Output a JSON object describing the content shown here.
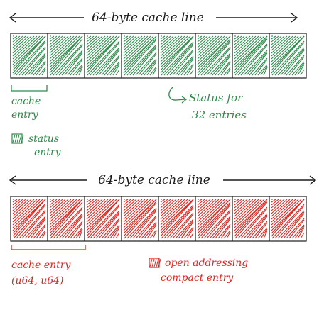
{
  "top_diagram": {
    "title": "64-byte cache line",
    "cell_count": 8,
    "fill_color": "#2e8b4a",
    "ink_color": "#1a1a1a",
    "bracket_label_line1": "cache",
    "bracket_label_line2": "entry",
    "note_line1": "Status for",
    "note_line2": "32 entries",
    "legend_line1": "status",
    "legend_line2": "entry"
  },
  "bottom_diagram": {
    "title": "64-byte cache line",
    "cell_count": 8,
    "fill_color": "#e0231c",
    "ink_color": "#1a1a1a",
    "bracket_label_line1": "cache entry",
    "bracket_label_line2": "(u64, u64)",
    "legend_line1": "open addressing",
    "legend_line2": "compact entry"
  }
}
